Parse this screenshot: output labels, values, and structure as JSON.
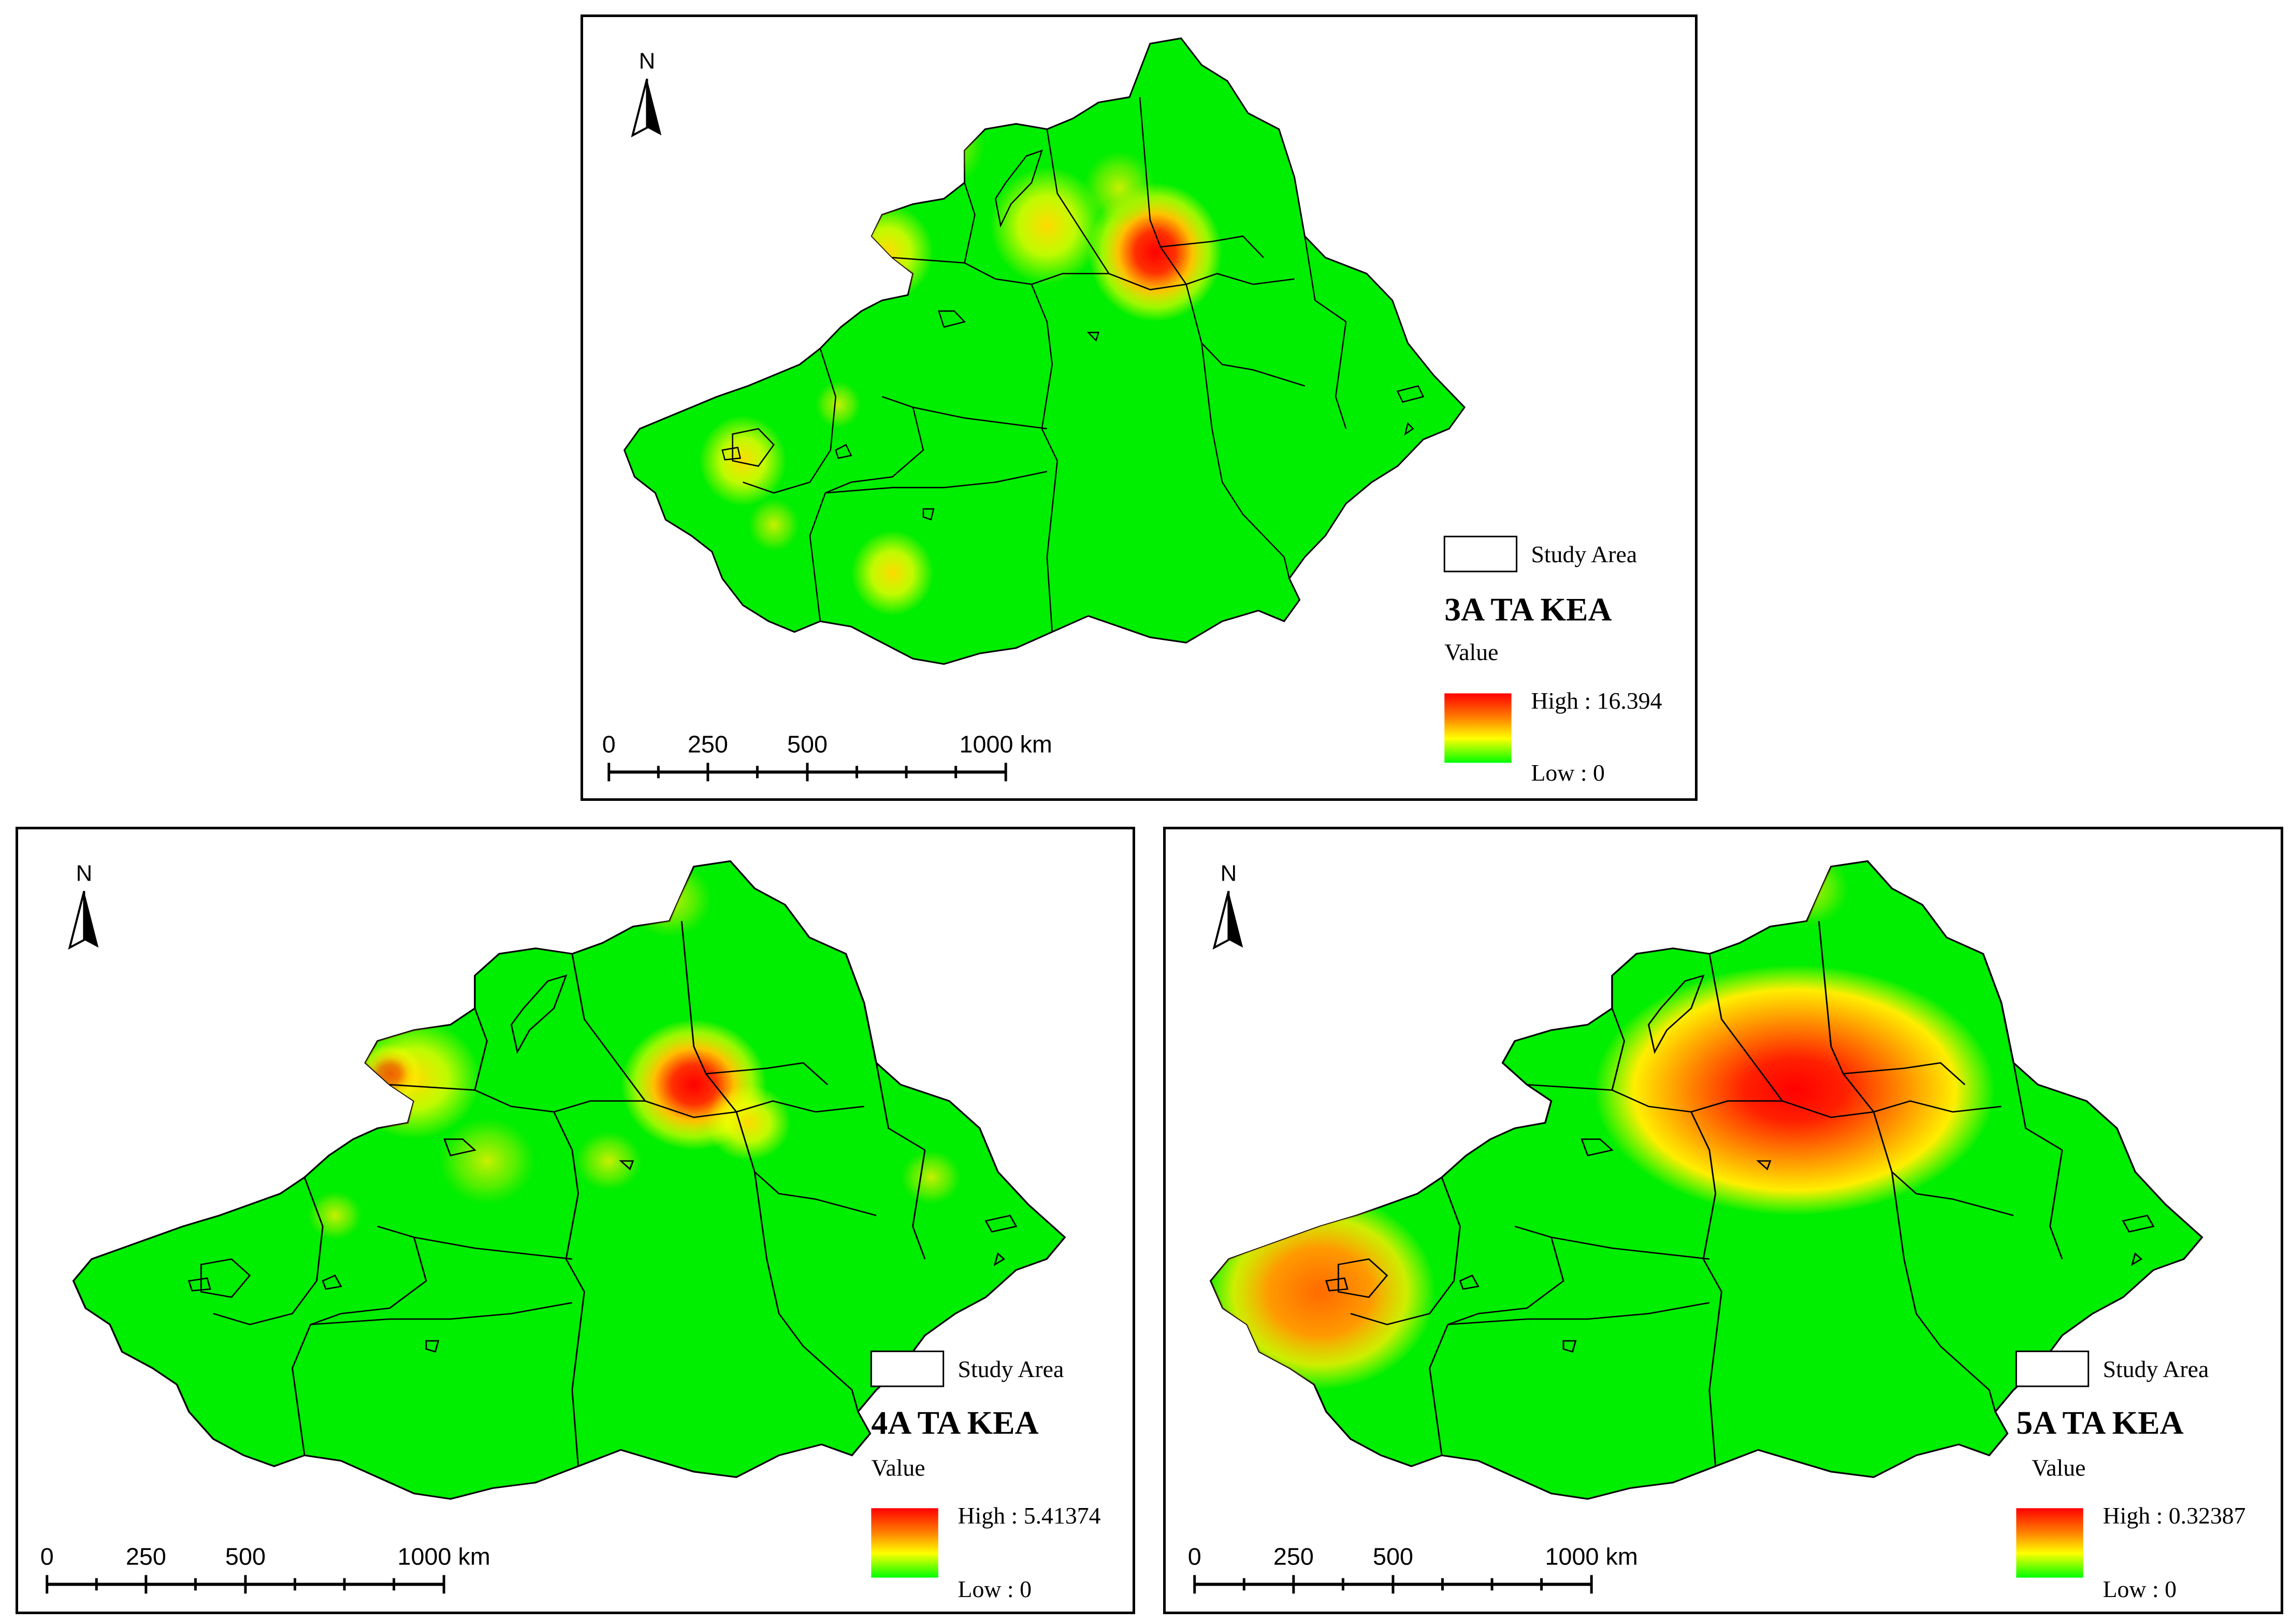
{
  "north_label": "N",
  "scale_bar": {
    "ticks": [
      "0",
      "250",
      "500",
      "1000 km"
    ]
  },
  "legend": {
    "study_area": "Study Area",
    "value_label": "Value",
    "low_label": "Low : 0",
    "ramp_colors": [
      "#ff0000",
      "#ff8000",
      "#ffff00",
      "#00ff00"
    ]
  },
  "panels": [
    {
      "id": "3a",
      "title": "3A TA KEA",
      "high_label": "High : 16.394"
    },
    {
      "id": "4a",
      "title": "4A TA KEA",
      "high_label": "High : 5.41374"
    },
    {
      "id": "5a",
      "title": "5A TA KEA",
      "high_label": "High : 0.32387"
    }
  ],
  "colors": {
    "background_surface": "#00ee00",
    "hot": "#ff0000",
    "warm": "#ffff00",
    "border": "#000000"
  }
}
